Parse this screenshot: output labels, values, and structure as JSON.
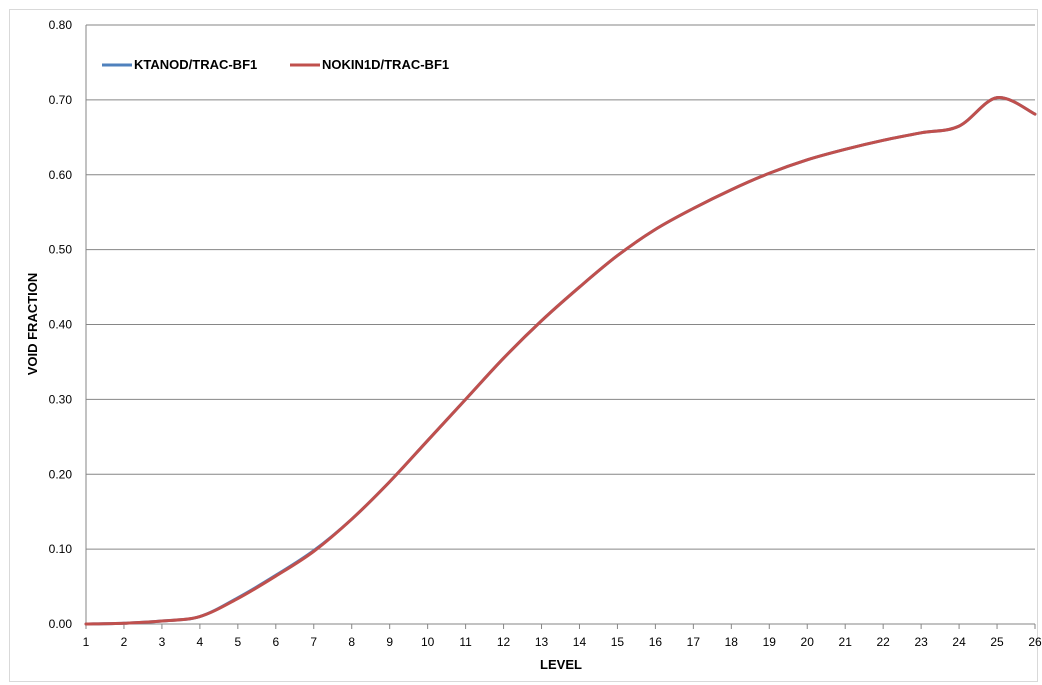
{
  "chart_data": {
    "type": "line",
    "title": "",
    "xlabel": "LEVEL",
    "ylabel": "VOID FRACTION",
    "x": [
      1,
      2,
      3,
      4,
      5,
      6,
      7,
      8,
      9,
      10,
      11,
      12,
      13,
      14,
      15,
      16,
      17,
      18,
      19,
      20,
      21,
      22,
      23,
      24,
      25,
      26
    ],
    "xlim": [
      1,
      26
    ],
    "ylim": [
      0,
      0.8
    ],
    "yticks": [
      "0.00",
      "0.10",
      "0.20",
      "0.30",
      "0.40",
      "0.50",
      "0.60",
      "0.70",
      "0.80"
    ],
    "grid": true,
    "legend_position": "top-left",
    "series": [
      {
        "name": "KTANOD/TRAC-BF1",
        "color": "#4f81bd",
        "values": [
          0.0,
          0.001,
          0.004,
          0.01,
          0.035,
          0.065,
          0.098,
          0.14,
          0.19,
          0.245,
          0.3,
          0.355,
          0.405,
          0.45,
          0.492,
          0.527,
          0.555,
          0.58,
          0.602,
          0.62,
          0.634,
          0.646,
          0.656,
          0.665,
          0.703,
          0.681
        ]
      },
      {
        "name": "NOKIN1D/TRAC-BF1",
        "color": "#c0504d",
        "values": [
          0.0,
          0.001,
          0.004,
          0.01,
          0.034,
          0.064,
          0.097,
          0.14,
          0.19,
          0.245,
          0.3,
          0.355,
          0.405,
          0.45,
          0.492,
          0.527,
          0.555,
          0.58,
          0.602,
          0.62,
          0.634,
          0.646,
          0.656,
          0.665,
          0.703,
          0.681
        ]
      }
    ]
  }
}
